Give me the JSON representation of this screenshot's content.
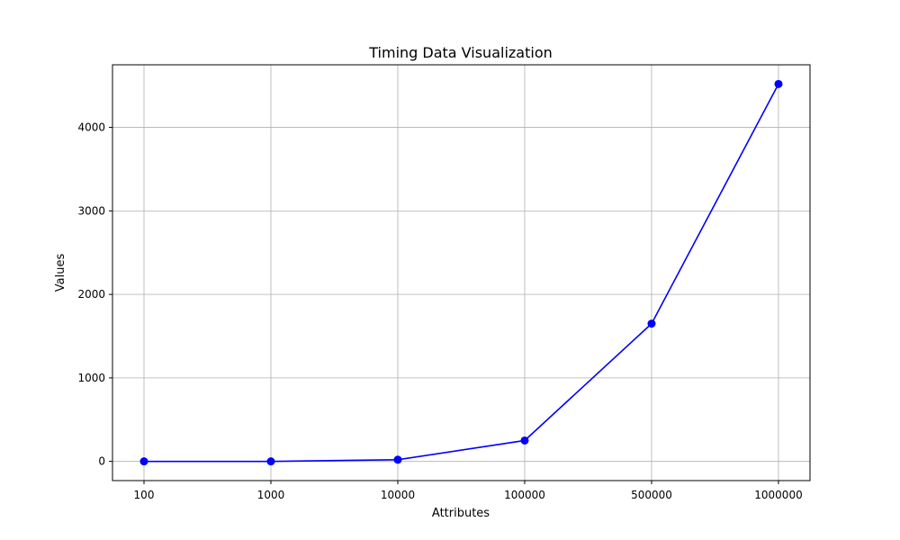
{
  "chart_data": {
    "type": "line",
    "title": "Timing Data Visualization",
    "xlabel": "Attributes",
    "ylabel": "Values",
    "categories": [
      "100",
      "1000",
      "10000",
      "100000",
      "500000",
      "1000000"
    ],
    "series": [
      {
        "values": [
          0,
          0,
          20,
          250,
          1650,
          4520
        ],
        "color": "#0000ff",
        "marker": "circle"
      }
    ],
    "yticks": [
      0,
      1000,
      2000,
      3000,
      4000
    ],
    "ylim": [
      -230,
      4750
    ],
    "grid": true
  }
}
